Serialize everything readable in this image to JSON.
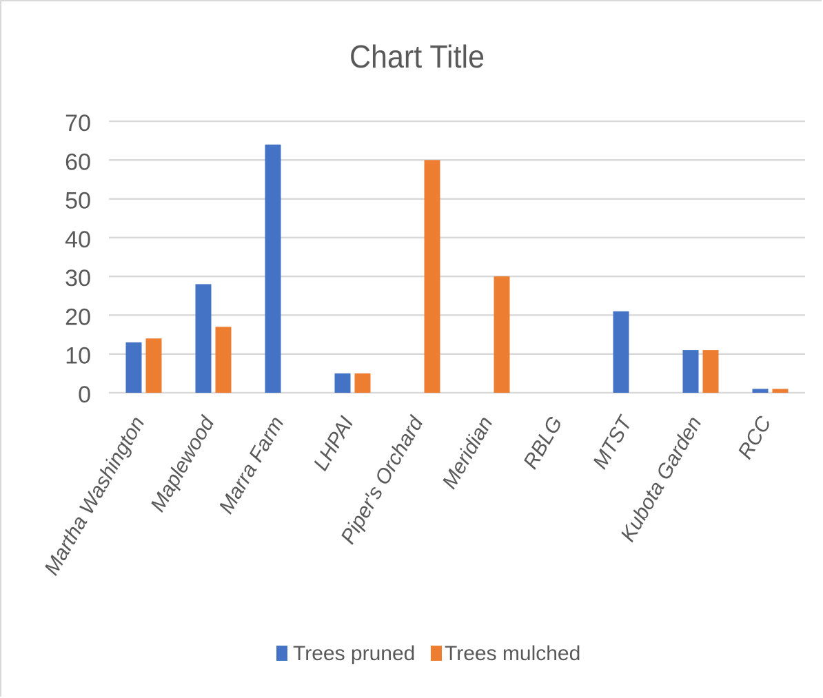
{
  "chart_data": {
    "type": "bar",
    "title": "Chart Title",
    "categories": [
      "Martha Washington",
      "Maplewood",
      "Marra Farm",
      "LHPAI",
      "Piper's Orchard",
      "Meridian",
      "RBLG",
      "MTST",
      "Kubota Garden",
      "RCC"
    ],
    "series": [
      {
        "name": "Trees pruned",
        "values": [
          13,
          28,
          64,
          5,
          0,
          0,
          0,
          21,
          11,
          1
        ]
      },
      {
        "name": "Trees mulched",
        "values": [
          14,
          17,
          0,
          5,
          60,
          30,
          0,
          0,
          11,
          1
        ]
      }
    ],
    "ylim": [
      0,
      70
    ],
    "yticks": [
      0,
      10,
      20,
      30,
      40,
      50,
      60,
      70
    ],
    "grid": true,
    "legend": "bottom",
    "colors": [
      "#4472c4",
      "#ed7d31"
    ]
  }
}
